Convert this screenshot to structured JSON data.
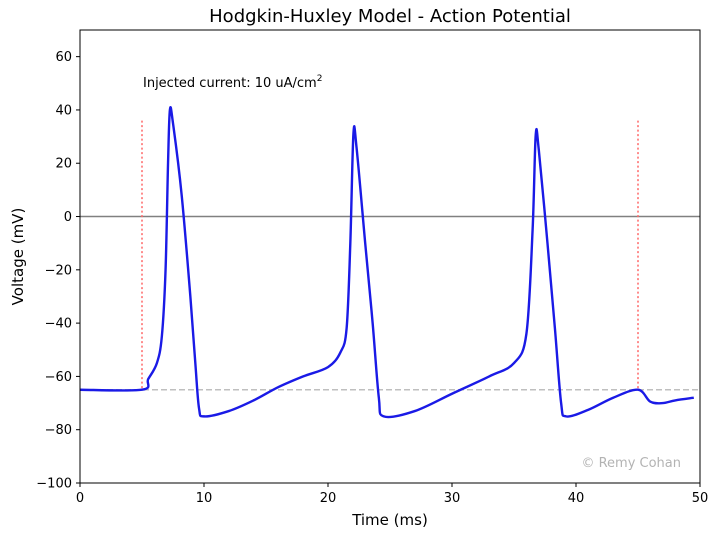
{
  "chart_data": {
    "type": "line",
    "title": "Hodgkin-Huxley Model - Action Potential",
    "xlabel": "Time (ms)",
    "ylabel": "Voltage (mV)",
    "xlim": [
      0,
      50
    ],
    "ylim": [
      -100,
      70
    ],
    "x_ticks": [
      0,
      10,
      20,
      30,
      40,
      50
    ],
    "y_ticks": [
      -100,
      -80,
      -60,
      -40,
      -20,
      0,
      20,
      40,
      60
    ],
    "grid": false,
    "annotation_prefix": "Injected current: 10 uA/cm",
    "annotation_superscript": "2",
    "watermark": "© Remy Cohan",
    "colors": {
      "voltage": "#1a1ae6",
      "zero_line": "#808080",
      "rest_line": "#bfbfbf",
      "stim_lines": "#ff6666"
    },
    "reference_lines": {
      "zero_mV": 0,
      "resting_mV": -65,
      "stim_start_ms": 5,
      "stim_end_ms": 45,
      "stim_line_top_mV": 36
    },
    "series": [
      {
        "points": [
          [
            0,
            -65
          ],
          [
            5,
            -65
          ],
          [
            5.5,
            -61
          ],
          [
            6.2,
            -55
          ],
          [
            6.6,
            -45
          ],
          [
            6.9,
            -20
          ],
          [
            7.1,
            20
          ],
          [
            7.25,
            40
          ],
          [
            7.5,
            35
          ],
          [
            8.2,
            8
          ],
          [
            8.9,
            -30
          ],
          [
            9.3,
            -55
          ],
          [
            9.6,
            -72
          ],
          [
            10,
            -75
          ],
          [
            12,
            -73
          ],
          [
            14,
            -69
          ],
          [
            16,
            -64
          ],
          [
            18,
            -60
          ],
          [
            20,
            -56.5
          ],
          [
            21,
            -51
          ],
          [
            21.5,
            -42
          ],
          [
            21.8,
            -10
          ],
          [
            22.05,
            31
          ],
          [
            22.3,
            26
          ],
          [
            23,
            -10
          ],
          [
            23.6,
            -40
          ],
          [
            24.1,
            -68
          ],
          [
            24.5,
            -75
          ],
          [
            27,
            -73
          ],
          [
            30,
            -66.5
          ],
          [
            33,
            -60
          ],
          [
            35,
            -55
          ],
          [
            36,
            -44
          ],
          [
            36.5,
            -5
          ],
          [
            36.75,
            30.5
          ],
          [
            37,
            25
          ],
          [
            37.7,
            -10
          ],
          [
            38.3,
            -42
          ],
          [
            38.8,
            -70
          ],
          [
            39.2,
            -75
          ],
          [
            41,
            -72.5
          ],
          [
            43,
            -68
          ],
          [
            45,
            -65
          ],
          [
            46,
            -69.5
          ],
          [
            47,
            -70
          ],
          [
            48,
            -69
          ],
          [
            49.5,
            -68
          ]
        ]
      }
    ]
  }
}
